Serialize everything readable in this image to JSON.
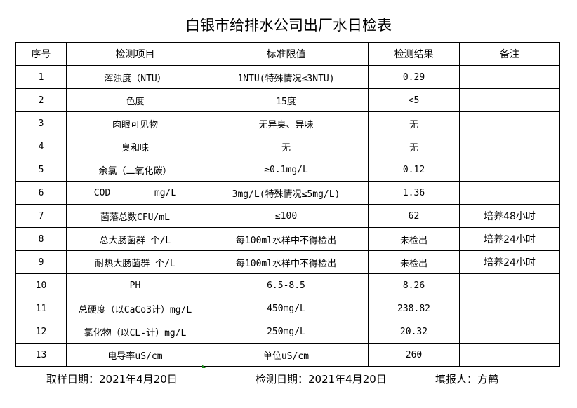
{
  "title": "白银市给排水公司出厂水日检表",
  "headers": [
    "序号",
    "检测项目",
    "标准限值",
    "检测结果",
    "备注"
  ],
  "rows": [
    [
      "1",
      "浑浊度（NTU）",
      "1NTU(特殊情况≤3NTU)",
      "0.29",
      ""
    ],
    [
      "2",
      "色度",
      "15度",
      "<5",
      ""
    ],
    [
      "3",
      "肉眼可见物",
      "无异臭、异味",
      "无",
      ""
    ],
    [
      "4",
      "臭和味",
      "无",
      "无",
      ""
    ],
    [
      "5",
      "余氯（二氧化碳）",
      "≥0.1mg/L",
      "0.12",
      ""
    ],
    [
      "6",
      "COD        mg/L",
      "3mg/L(特殊情况≤5mg/L)",
      "1.36",
      ""
    ],
    [
      "7",
      "菌落总数CFU/mL",
      "≤100",
      "62",
      "培养48小时"
    ],
    [
      "8",
      "总大肠菌群 个/L",
      "每100ml水样中不得检出",
      "未检出",
      "培养24小时"
    ],
    [
      "9",
      "耐热大肠菌群 个/L",
      "每100ml水样中不得检出",
      "未检出",
      "培养24小时"
    ],
    [
      "10",
      "PH",
      "6.5-8.5",
      "8.26",
      ""
    ],
    [
      "11",
      "总硬度（以CaCo3计）mg/L",
      "450mg/L",
      "238.82",
      ""
    ],
    [
      "12",
      "氯化物（以CL-计）mg/L",
      "250mg/L",
      "20.32",
      ""
    ],
    [
      "13",
      "电导率uS/cm",
      "单位uS/cm",
      "260",
      ""
    ]
  ],
  "footer": {
    "sampling_date": "取样日期：2021年4月20日",
    "test_date": "检测日期：2021年4月20日",
    "reporter": "填报人：方鹤"
  }
}
